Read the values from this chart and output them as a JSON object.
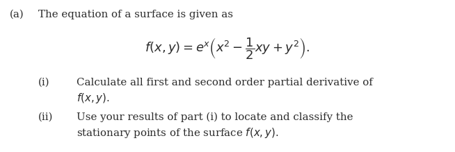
{
  "background_color": "#ffffff",
  "text_color": "#2b2b2b",
  "label_a": "(a)",
  "intro_text": "The equation of a surface is given as",
  "equation": "$f(x,y) = e^{x}\\left(x^{2} - \\dfrac{1}{2}xy + y^{2}\\right).$",
  "label_i": "(i)",
  "text_i_line1": "Calculate all first and second order partial derivative of",
  "text_i_line2": "$f(x, y).$",
  "label_ii": "(ii)",
  "text_ii_line1": "Use your results of part (i) to locate and classify the",
  "text_ii_line2": "stationary points of the surface $f(x, y).$",
  "font_size": 10.8,
  "font_size_eq": 13.0,
  "fig_width": 6.54,
  "fig_height": 2.19,
  "dpi": 100
}
